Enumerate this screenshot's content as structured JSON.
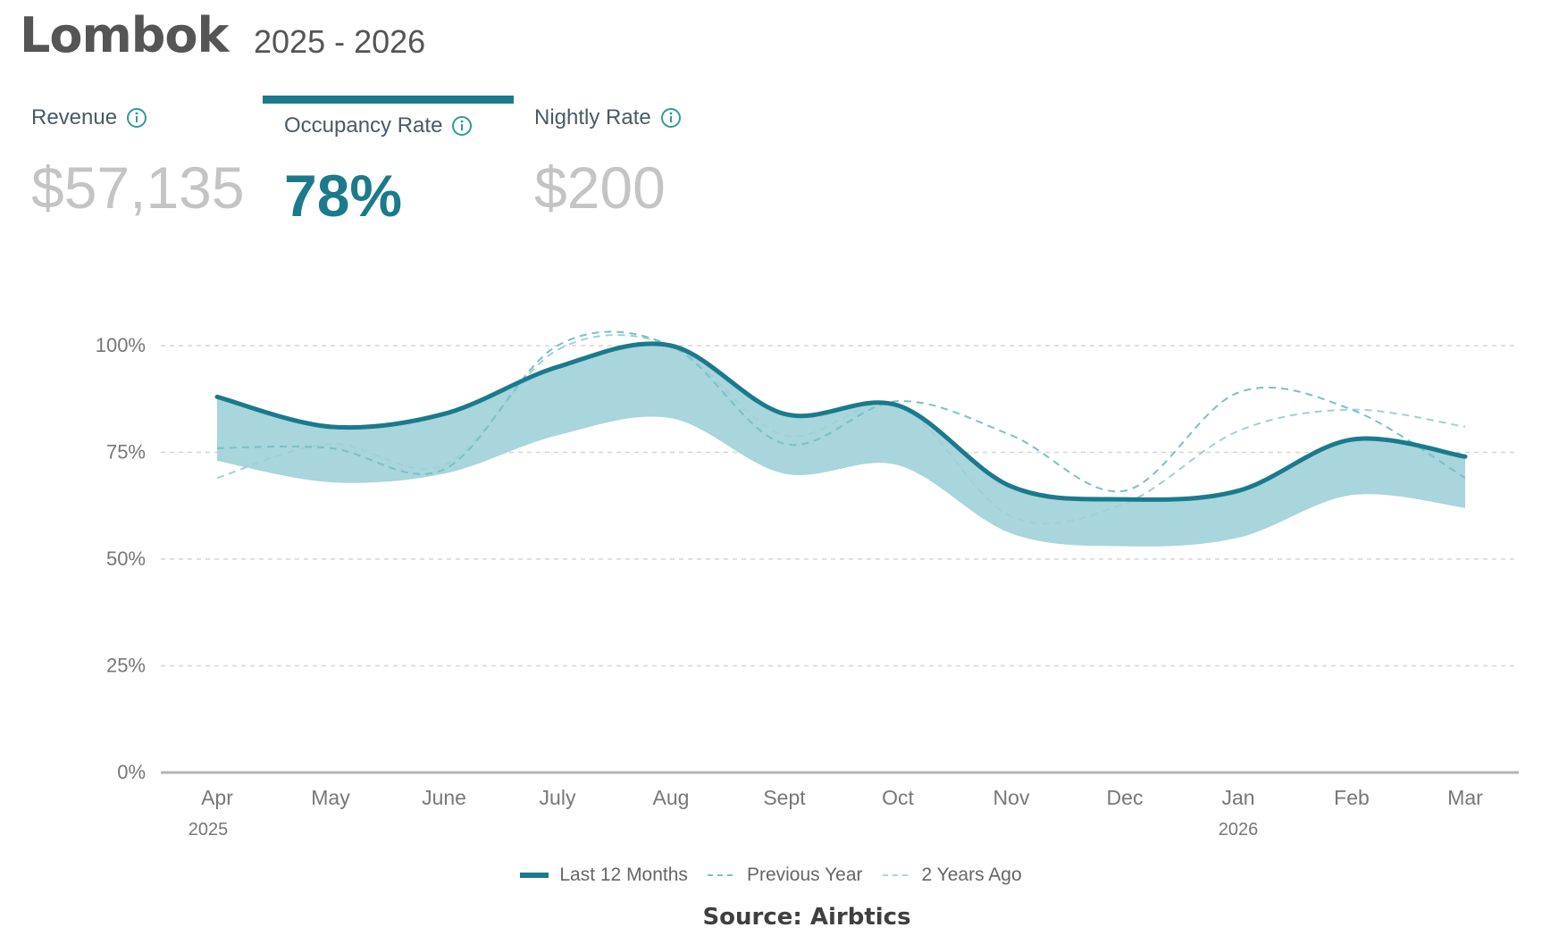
{
  "header": {
    "title": "Lombok",
    "years": "2025 - 2026"
  },
  "metrics": {
    "revenue": {
      "label": "Revenue",
      "value": "$57,135"
    },
    "occupancy": {
      "label": "Occupancy Rate",
      "value": "78%"
    },
    "nightly": {
      "label": "Nightly Rate",
      "value": "$200"
    }
  },
  "colors": {
    "accent": "#1b7a8c",
    "band": "#a9d5dc",
    "dash": "#7bbfc8",
    "grid": "#d6d6d6"
  },
  "chart_data": {
    "type": "line",
    "categories": [
      "Apr",
      "May",
      "June",
      "July",
      "Aug",
      "Sept",
      "Oct",
      "Nov",
      "Dec",
      "Jan",
      "Feb",
      "Mar"
    ],
    "year_labels": [
      {
        "index": 0,
        "label": "2025"
      },
      {
        "index": 9,
        "label": "2026"
      }
    ],
    "ylim": [
      0,
      100
    ],
    "yticks": [
      "0%",
      "25%",
      "50%",
      "75%",
      "100%"
    ],
    "series": [
      {
        "name": "Last 12 Months",
        "style": "solid",
        "values": [
          88,
          81,
          84,
          95,
          100,
          84,
          86,
          67,
          64,
          66,
          78,
          74
        ]
      },
      {
        "name": "Previous Year",
        "style": "dashed",
        "values": [
          76,
          76,
          71,
          100,
          100,
          77,
          87,
          79,
          66,
          89,
          85,
          69
        ]
      },
      {
        "name": "2 Years Ago",
        "style": "dashed",
        "values": [
          69,
          77,
          72,
          99,
          100,
          79,
          86,
          60,
          63,
          80,
          85,
          81
        ]
      }
    ],
    "band": {
      "upper": [
        88,
        81,
        84,
        95,
        100,
        84,
        86,
        67,
        64,
        66,
        78,
        74
      ],
      "lower": [
        73,
        68,
        70,
        79,
        83,
        70,
        72,
        56,
        53,
        55,
        65,
        62
      ]
    }
  },
  "source": "Source: Airbtics"
}
